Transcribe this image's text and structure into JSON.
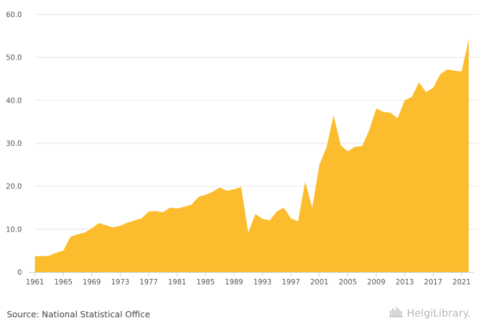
{
  "chart_data": {
    "type": "area",
    "title": "",
    "xlabel": "",
    "ylabel": "",
    "ylim": [
      0,
      60
    ],
    "yticks": [
      "0",
      "10.0",
      "20.0",
      "30.0",
      "40.0",
      "50.0",
      "60.0"
    ],
    "xlim": [
      1961,
      2022
    ],
    "xticks": [
      1961,
      1965,
      1969,
      1973,
      1977,
      1981,
      1985,
      1989,
      1993,
      1997,
      2001,
      2005,
      2009,
      2013,
      2017,
      2021
    ],
    "grid": "horizontal",
    "legend": "none",
    "color": "#fbbd2d",
    "x": [
      1961,
      1962,
      1963,
      1964,
      1965,
      1966,
      1967,
      1968,
      1969,
      1970,
      1971,
      1972,
      1973,
      1974,
      1975,
      1976,
      1977,
      1978,
      1979,
      1980,
      1981,
      1982,
      1983,
      1984,
      1985,
      1986,
      1987,
      1988,
      1989,
      1990,
      1991,
      1992,
      1993,
      1994,
      1995,
      1996,
      1997,
      1998,
      1999,
      2000,
      2001,
      2002,
      2003,
      2004,
      2005,
      2006,
      2007,
      2008,
      2009,
      2010,
      2011,
      2012,
      2013,
      2014,
      2015,
      2016,
      2017,
      2018,
      2019,
      2020,
      2021,
      2022
    ],
    "values": [
      3.7,
      3.7,
      3.8,
      4.5,
      5.0,
      8.2,
      8.8,
      9.2,
      10.2,
      11.4,
      10.9,
      10.4,
      10.8,
      11.5,
      12.0,
      12.5,
      14.1,
      14.2,
      13.9,
      15.0,
      14.8,
      15.2,
      15.7,
      17.5,
      18.0,
      18.7,
      19.7,
      18.9,
      19.3,
      19.8,
      9.2,
      13.5,
      12.4,
      12.0,
      14.1,
      15.0,
      12.5,
      11.8,
      21.0,
      15.0,
      25.0,
      29.0,
      36.5,
      29.5,
      28.1,
      29.2,
      29.3,
      33.0,
      38.1,
      37.3,
      37.1,
      35.8,
      40.0,
      40.8,
      44.2,
      41.9,
      42.9,
      46.1,
      47.2,
      46.9,
      46.7,
      54.2
    ]
  },
  "footer": {
    "source": "Source: National Statistical Office",
    "brand": "HelgiLibrary."
  }
}
